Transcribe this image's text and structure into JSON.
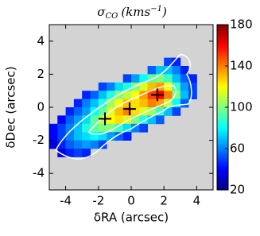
{
  "chart_data": {
    "type": "heatmap",
    "title": {
      "symbol": "σ",
      "subscript": "CO",
      "unit": "(kms",
      "superscript": "−1",
      "close": ")"
    },
    "x_label": "δRA (arcsec)",
    "y_label": "δDec (arcsec)",
    "xlim": [
      -5,
      5
    ],
    "xticks": [
      -4,
      -2,
      0,
      2,
      4
    ],
    "ylim": [
      -5,
      5
    ],
    "yticks": [
      -4,
      -2,
      0,
      2,
      4
    ],
    "clim": [
      20,
      180
    ],
    "cticks": [
      20,
      60,
      100,
      140,
      180
    ],
    "colormap": "jet",
    "background": "#d3d3d3",
    "x_edges": [
      -5,
      -4.5,
      -4,
      -3.5,
      -3,
      -2.5,
      -2,
      -1.5,
      -1,
      -0.5,
      0,
      0.5,
      1,
      1.5,
      2,
      2.5,
      3,
      3.5,
      4
    ],
    "y_edges": [
      3,
      2.5,
      2,
      1.5,
      1,
      0.5,
      0,
      -0.5,
      -1,
      -1.5,
      -2,
      -2.5,
      -3
    ],
    "z": [
      [
        null,
        null,
        null,
        null,
        null,
        null,
        null,
        null,
        null,
        null,
        null,
        null,
        null,
        null,
        50,
        45,
        null,
        null
      ],
      [
        null,
        null,
        null,
        null,
        null,
        null,
        null,
        null,
        null,
        null,
        null,
        null,
        55,
        70,
        70,
        60,
        45,
        null
      ],
      [
        null,
        null,
        null,
        null,
        null,
        null,
        null,
        null,
        null,
        50,
        65,
        80,
        95,
        100,
        90,
        70,
        55,
        45
      ],
      [
        null,
        null,
        null,
        null,
        null,
        null,
        50,
        60,
        75,
        85,
        100,
        115,
        130,
        135,
        120,
        90,
        65,
        50
      ],
      [
        null,
        null,
        null,
        null,
        45,
        55,
        70,
        85,
        100,
        110,
        120,
        135,
        150,
        160,
        140,
        100,
        70,
        50
      ],
      [
        null,
        null,
        null,
        45,
        60,
        70,
        85,
        105,
        120,
        130,
        125,
        130,
        140,
        135,
        110,
        80,
        55,
        null
      ],
      [
        null,
        null,
        45,
        55,
        65,
        80,
        95,
        115,
        130,
        140,
        125,
        115,
        105,
        90,
        70,
        50,
        null,
        null
      ],
      [
        null,
        40,
        55,
        65,
        75,
        95,
        110,
        120,
        125,
        115,
        100,
        85,
        70,
        55,
        null,
        null,
        null,
        null
      ],
      [
        40,
        50,
        60,
        70,
        85,
        95,
        100,
        100,
        90,
        75,
        60,
        50,
        null,
        null,
        null,
        null,
        null,
        null
      ],
      [
        40,
        50,
        60,
        70,
        75,
        80,
        75,
        65,
        55,
        45,
        null,
        null,
        null,
        null,
        null,
        null,
        null,
        null
      ],
      [
        35,
        45,
        55,
        60,
        65,
        60,
        50,
        null,
        null,
        null,
        null,
        null,
        null,
        null,
        null,
        null,
        null,
        null
      ],
      [
        null,
        35,
        45,
        50,
        45,
        null,
        null,
        null,
        null,
        null,
        null,
        null,
        null,
        null,
        null,
        null,
        null,
        null
      ]
    ],
    "markers": {
      "x": [
        -1.6,
        -0.1,
        1.6
      ],
      "y": [
        -0.7,
        -0.1,
        0.75
      ],
      "color": "#000000"
    }
  }
}
